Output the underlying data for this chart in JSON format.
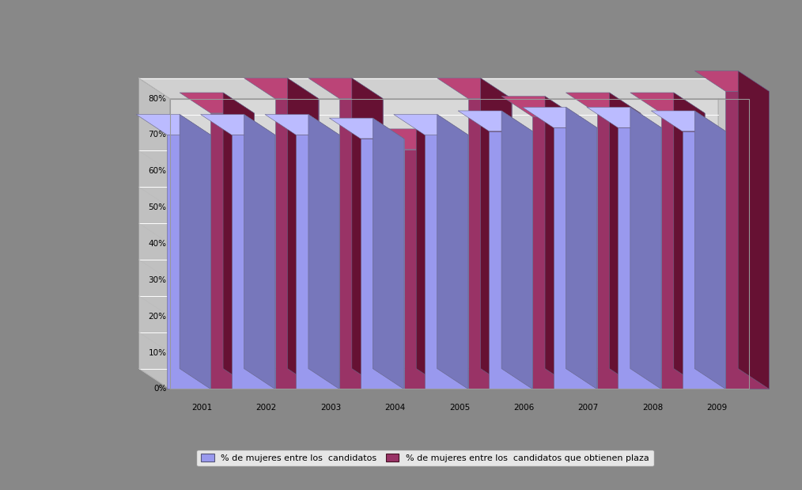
{
  "years": [
    "2001",
    "2002",
    "2003",
    "2004",
    "2005",
    "2006",
    "2007",
    "2008",
    "2009"
  ],
  "candidatos": [
    70,
    70,
    70,
    69,
    70,
    71,
    72,
    72,
    71
  ],
  "plaza": [
    76,
    80,
    80,
    66,
    80,
    75,
    76,
    76,
    82
  ],
  "bar_color1": "#9999ee",
  "bar_color1_side": "#7777bb",
  "bar_color1_top": "#bbbbff",
  "bar_color2": "#993366",
  "bar_color2_side": "#661133",
  "bar_color2_top": "#bb4477",
  "background_color": "#888888",
  "wall_color": "#d8d8d8",
  "floor_color": "#aaaaaa",
  "side_wall_color": "#c0c0c0",
  "grid_color": "#ffffff",
  "ylim_max": 90,
  "yticks": [
    0,
    10,
    20,
    30,
    40,
    50,
    60,
    70,
    80
  ],
  "ytick_labels": [
    "0%",
    "10%",
    "20%",
    "30%",
    "40%",
    "50%",
    "60%",
    "70%",
    "80%"
  ],
  "legend_label1": "% de mujeres entre los  candidatos",
  "legend_label2": "% de mujeres entre los  candidatos que obtienen plaza"
}
